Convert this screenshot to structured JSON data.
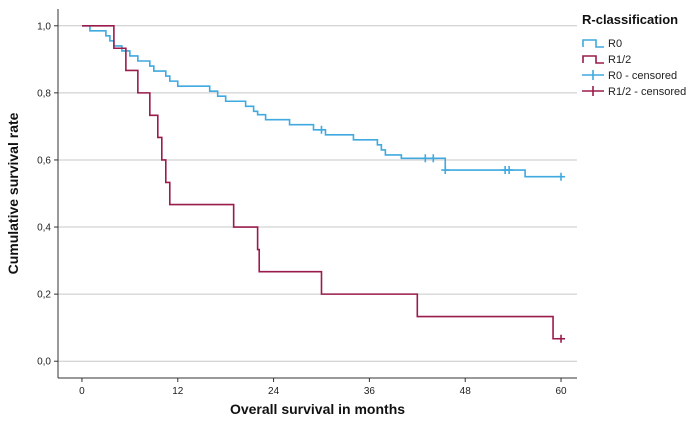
{
  "chart_data": {
    "type": "line",
    "subtype": "kaplan-meier",
    "title": "",
    "xlabel": "Overall survival in months",
    "ylabel": "Cumulative survival rate",
    "xlim": [
      -3,
      62
    ],
    "ylim": [
      -0.05,
      1.05
    ],
    "x_ticks": [
      0,
      12,
      24,
      36,
      48,
      60
    ],
    "y_ticks": [
      0.0,
      0.2,
      0.4,
      0.6,
      0.8,
      1.0
    ],
    "y_tick_labels": [
      "0,0",
      "0,2",
      "0,4",
      "0,6",
      "0,8",
      "1,0"
    ],
    "grid": "horizontal",
    "legend": {
      "title": "R-classification",
      "position": "top-right",
      "entries": [
        {
          "label": "R0",
          "series": "R0",
          "kind": "line"
        },
        {
          "label": "R1/2",
          "series": "R1/2",
          "kind": "line"
        },
        {
          "label": "R0 - censored",
          "series": "R0",
          "kind": "censor"
        },
        {
          "label": "R1/2 - censored",
          "series": "R1/2",
          "kind": "censor"
        }
      ]
    },
    "series": [
      {
        "name": "R0",
        "color": "#3fa9e0",
        "steps": [
          [
            0,
            1.0
          ],
          [
            1,
            0.985
          ],
          [
            3,
            0.97
          ],
          [
            3.5,
            0.955
          ],
          [
            4,
            0.94
          ],
          [
            5,
            0.925
          ],
          [
            6,
            0.91
          ],
          [
            7,
            0.895
          ],
          [
            8.5,
            0.88
          ],
          [
            9,
            0.865
          ],
          [
            10.5,
            0.85
          ],
          [
            11,
            0.835
          ],
          [
            12,
            0.82
          ],
          [
            16,
            0.805
          ],
          [
            17,
            0.79
          ],
          [
            18,
            0.775
          ],
          [
            20.5,
            0.76
          ],
          [
            21.5,
            0.745
          ],
          [
            22,
            0.735
          ],
          [
            23,
            0.72
          ],
          [
            26,
            0.705
          ],
          [
            29,
            0.69
          ],
          [
            30.5,
            0.675
          ],
          [
            34,
            0.66
          ],
          [
            37,
            0.645
          ],
          [
            37.5,
            0.63
          ],
          [
            38,
            0.615
          ],
          [
            40,
            0.605
          ],
          [
            45.5,
            0.57
          ],
          [
            55.5,
            0.55
          ]
        ],
        "end_x": 60,
        "censored": [
          [
            30,
            0.69
          ],
          [
            43,
            0.605
          ],
          [
            44,
            0.605
          ],
          [
            45.5,
            0.57
          ],
          [
            53,
            0.57
          ],
          [
            53.5,
            0.57
          ],
          [
            60,
            0.55
          ]
        ]
      },
      {
        "name": "R1/2",
        "color": "#9a1b4c",
        "steps": [
          [
            0,
            1.0
          ],
          [
            4,
            0.933
          ],
          [
            5.5,
            0.867
          ],
          [
            7,
            0.8
          ],
          [
            8.5,
            0.733
          ],
          [
            9.5,
            0.667
          ],
          [
            10,
            0.6
          ],
          [
            10.5,
            0.533
          ],
          [
            11,
            0.467
          ],
          [
            19,
            0.4
          ],
          [
            22,
            0.333
          ],
          [
            22.2,
            0.267
          ],
          [
            30,
            0.2
          ],
          [
            42,
            0.133
          ],
          [
            59,
            0.067
          ]
        ],
        "end_x": 60,
        "censored": [
          [
            60,
            0.067
          ]
        ]
      }
    ]
  }
}
